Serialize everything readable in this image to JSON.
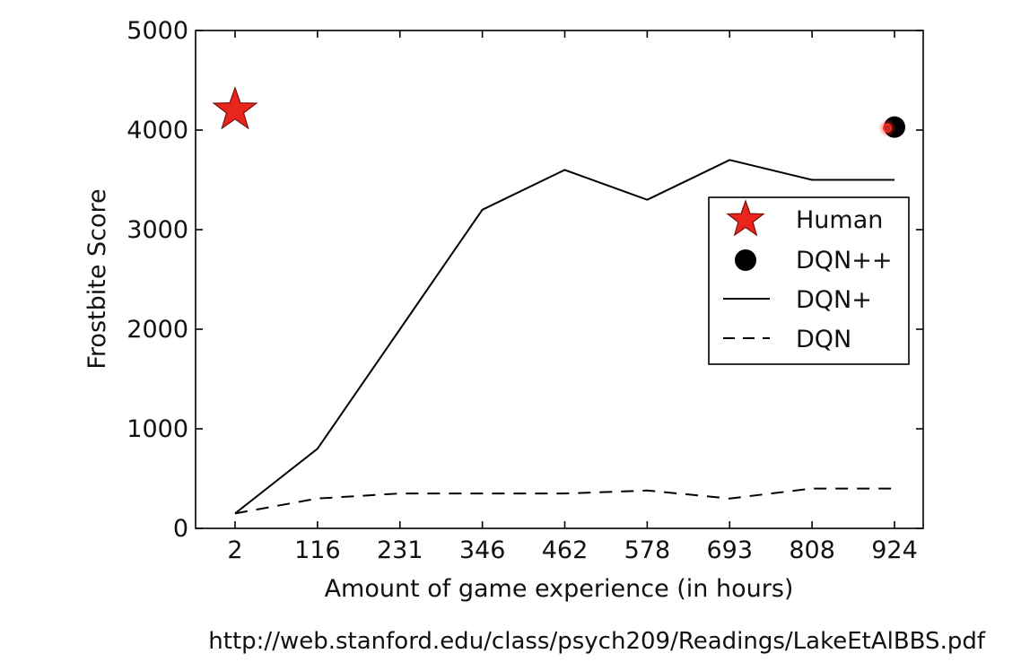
{
  "chart_data": {
    "type": "line",
    "xlabel": "Amount of game experience (in hours)",
    "ylabel": "Frostbite Score",
    "categories": [
      "2",
      "116",
      "231",
      "346",
      "462",
      "578",
      "693",
      "808",
      "924"
    ],
    "ylim": [
      0,
      5000
    ],
    "yticks": [
      "0",
      "1000",
      "2000",
      "3000",
      "4000",
      "5000"
    ],
    "grid": false,
    "legend_position": "right",
    "series": [
      {
        "name": "DQN+",
        "style": "solid",
        "color": "#000000",
        "values": [
          150,
          800,
          2000,
          3200,
          3600,
          3300,
          3700,
          3500,
          3500
        ]
      },
      {
        "name": "DQN",
        "style": "dashed",
        "color": "#000000",
        "values": [
          150,
          300,
          350,
          350,
          350,
          380,
          300,
          400,
          400
        ]
      }
    ],
    "points": [
      {
        "name": "Human",
        "marker": "star",
        "color": "#e8261e",
        "x": "2",
        "y": 4200
      },
      {
        "name": "DQN++",
        "marker": "circle",
        "color": "#000000",
        "x": "924",
        "y": 4030
      }
    ],
    "legend": [
      "Human",
      "DQN++",
      "DQN+",
      "DQN"
    ]
  },
  "footer": {
    "url": "http://web.stanford.edu/class/psych209/Readings/LakeEtAlBBS.pdf"
  }
}
